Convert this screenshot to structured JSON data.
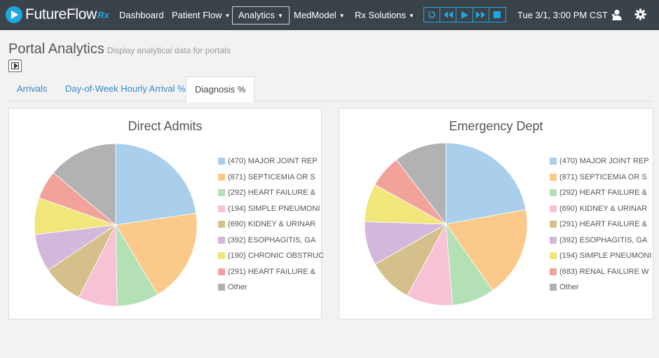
{
  "brand": {
    "name": "FutureFlow",
    "suffix": "Rx"
  },
  "nav": {
    "items": [
      {
        "label": "Dashboard",
        "caret": false
      },
      {
        "label": "Patient Flow",
        "caret": true
      },
      {
        "label": "Analytics",
        "caret": true,
        "active": true
      },
      {
        "label": "MedModel",
        "caret": true
      },
      {
        "label": "Rx Solutions",
        "caret": true
      }
    ],
    "datetime": "Tue 3/1, 3:00 PM CST",
    "player_buttons": [
      "reset-icon",
      "rewind-icon",
      "play-icon",
      "fast-forward-icon",
      "stop-icon"
    ]
  },
  "page": {
    "title": "Portal Analytics",
    "subtitle": "Display analytical data for portals"
  },
  "tabs": [
    {
      "label": "Arrivals",
      "active": false
    },
    {
      "label": "Day-of-Week Hourly Arrival %",
      "active": false
    },
    {
      "label": "Diagnosis %",
      "active": true
    }
  ],
  "colors": {
    "blue": "#a9cfec",
    "orange": "#fbc98a",
    "green": "#b3e0b5",
    "pink": "#f7c1d6",
    "khaki": "#d5c08b",
    "lavender": "#d3b8db",
    "yellow": "#f1e67a",
    "salmon": "#f1a39b",
    "gray": "#b2b2b2"
  },
  "chart_data": [
    {
      "type": "pie",
      "title": "Direct Admits",
      "labels": [
        "(470) MAJOR JOINT REP",
        "(871) SEPTICEMIA OR S",
        "(292) HEART FAILURE &",
        "(194) SIMPLE PNEUMONI",
        "(690) KIDNEY & URINAR",
        "(392) ESOPHAGITIS, GA",
        "(190) CHRONIC OBSTRUC",
        "(291) HEART FAILURE &",
        "Other"
      ],
      "values": [
        22.7,
        18.7,
        8.3,
        7.8,
        8.1,
        7.5,
        7.3,
        5.7,
        13.9
      ],
      "colors": [
        "#a9cfec",
        "#fbc98a",
        "#b3e0b5",
        "#f7c1d6",
        "#d5c08b",
        "#d3b8db",
        "#f1e67a",
        "#f1a39b",
        "#b2b2b2"
      ]
    },
    {
      "type": "pie",
      "title": "Emergency Dept",
      "labels": [
        "(470) MAJOR JOINT REP",
        "(871) SEPTICEMIA OR S",
        "(292) HEART FAILURE &",
        "(690) KIDNEY & URINAR",
        "(291) HEART FAILURE &",
        "(392) ESOPHAGITIS, GA",
        "(194) SIMPLE PNEUMONI",
        "(683) RENAL FAILURE W",
        "Other"
      ],
      "values": [
        22.1,
        18.1,
        8.5,
        9.2,
        8.9,
        8.7,
        7.6,
        6.5,
        10.4
      ],
      "colors": [
        "#a9cfec",
        "#fbc98a",
        "#b3e0b5",
        "#f7c1d6",
        "#d5c08b",
        "#d3b8db",
        "#f1e67a",
        "#f1a39b",
        "#b2b2b2"
      ]
    }
  ]
}
